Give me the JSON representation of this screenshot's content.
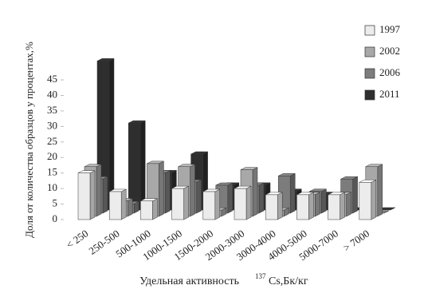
{
  "chart_data": {
    "type": "bar3d",
    "ylabel": "Доля от количества образцов у процентах,%",
    "xlabel": [
      "Удельная активность",
      "137",
      "Cs,Бк/кг"
    ],
    "categories": [
      "< 250",
      "250-500",
      "500-1000",
      "1000-1500",
      "1500-2000",
      "2000-3000",
      "3000-4000",
      "4000-5000",
      "5000-7000",
      "> 7000"
    ],
    "series": [
      {
        "name": "1997",
        "color": "#ececec",
        "values": [
          15,
          9,
          6,
          10,
          9,
          10,
          8,
          8,
          8,
          12
        ]
      },
      {
        "name": "2002",
        "color": "#a8a8a8",
        "values": [
          16,
          5,
          17,
          16,
          2,
          15,
          2,
          7,
          7,
          16
        ]
      },
      {
        "name": "2006",
        "color": "#7c7c7c",
        "values": [
          11,
          3,
          13,
          10,
          9,
          9,
          12,
          7,
          11,
          0
        ]
      },
      {
        "name": "2011",
        "color": "#2e2e2e",
        "values": [
          48,
          28,
          12,
          18,
          8,
          8,
          6,
          5,
          0,
          0
        ]
      }
    ],
    "ylim": [
      0,
      50
    ],
    "yticks": [
      0,
      5,
      10,
      15,
      20,
      25,
      30,
      35,
      40,
      45
    ]
  }
}
